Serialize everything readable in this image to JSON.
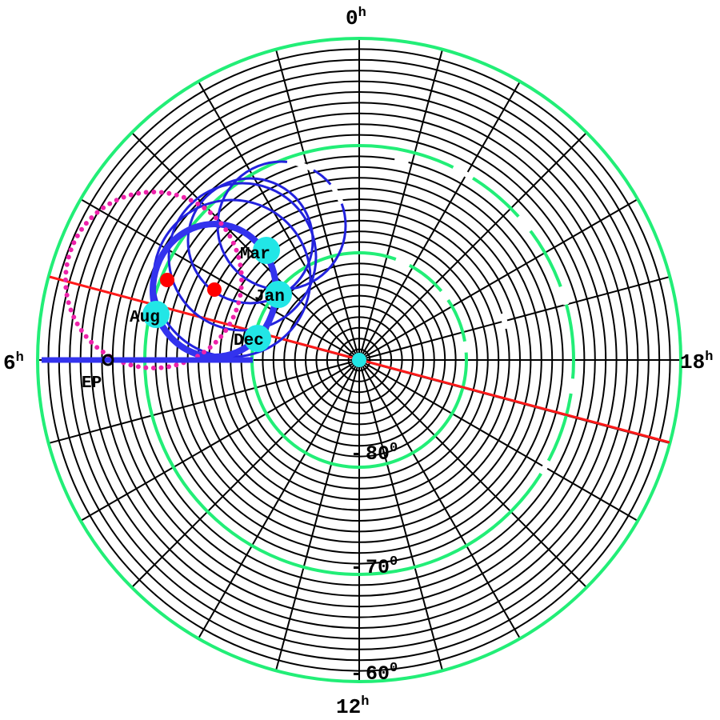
{
  "hour_labels": {
    "top": "0",
    "right": "18",
    "bottom": "12",
    "left": "6",
    "unit": "h"
  },
  "declination_labels": [
    {
      "sign": "-",
      "value": "80",
      "unit": "0"
    },
    {
      "sign": "-",
      "value": "70",
      "unit": "0"
    },
    {
      "sign": "-",
      "value": "60",
      "unit": "0"
    }
  ],
  "months": [
    "Mar",
    "Jan",
    "Aug",
    "Dec"
  ],
  "ep_label": "EP",
  "colors": {
    "grid": "#000000",
    "declination_circles": "#22ee77",
    "ecliptic_line": "#ff1a1a",
    "orbit_circles": "#2222dd",
    "main_orbit": "#3333ee",
    "ep_axis": "#3333ee",
    "dotted_circle": "#ee22aa",
    "markers": "#22e6e6",
    "red_points": "#ff0000"
  }
}
